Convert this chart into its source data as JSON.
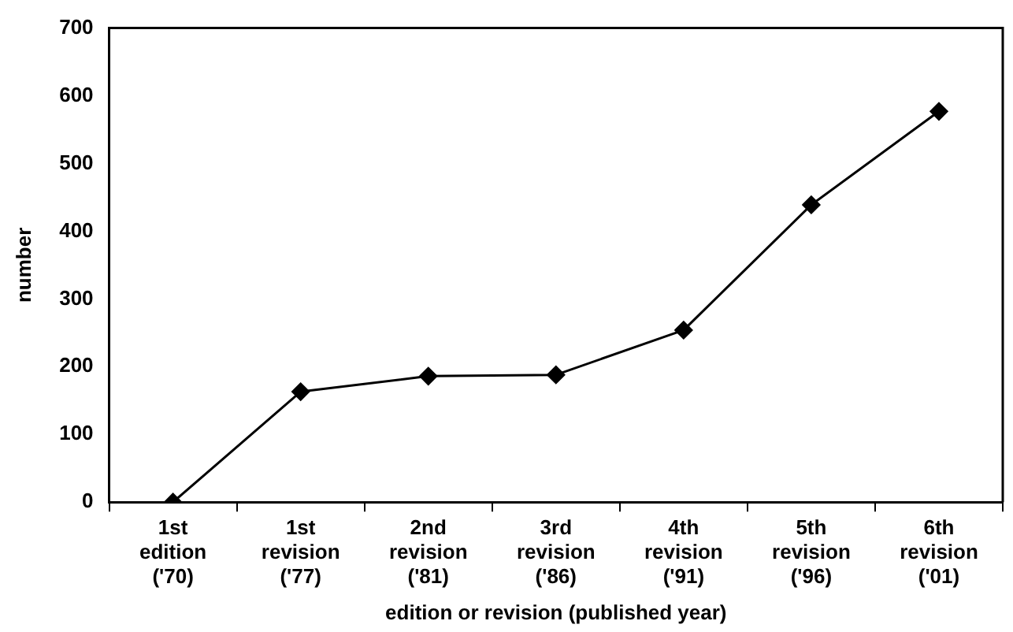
{
  "chart_data": {
    "type": "line",
    "xlabel": "edition or revision (published year)",
    "ylabel": "number",
    "categories": [
      "1st\nedition\n('70)",
      "1st\nrevision\n('77)",
      "2nd\nrevision\n('81)",
      "3rd\nrevision\n('86)",
      "4th\nrevision\n('91)",
      "5th\nrevision\n('96)",
      "6th\nrevision\n('01)"
    ],
    "series": [
      {
        "color": "#000000",
        "values": [
          0,
          163,
          186,
          188,
          254,
          439,
          577
        ]
      }
    ],
    "ylim": [
      0,
      700
    ],
    "yticks": [
      0,
      100,
      200,
      300,
      400,
      500,
      600,
      700
    ],
    "grid": false,
    "legend": false,
    "marker": "diamond",
    "line_style": "solid"
  }
}
